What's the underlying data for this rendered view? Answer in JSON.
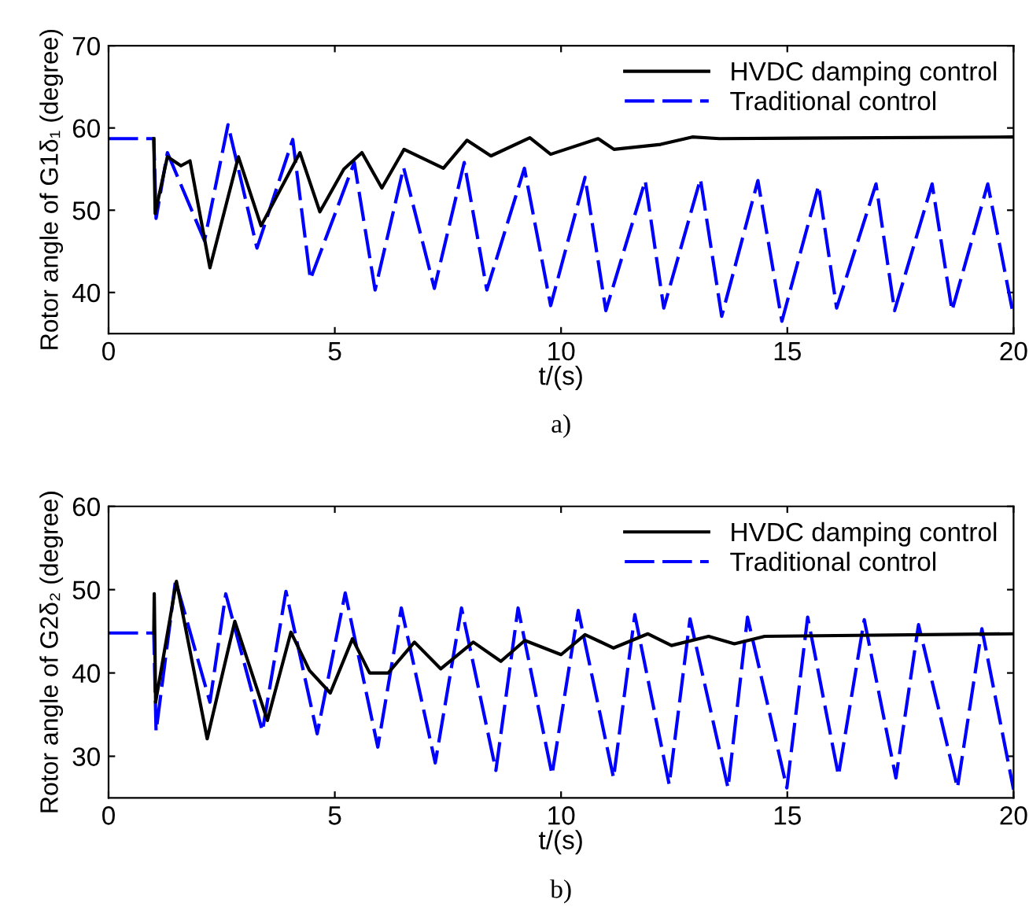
{
  "chart_data": [
    {
      "type": "line",
      "xlabel": "t/(s)",
      "ylabel": "Rotor angle of G1δ₁ (degree)",
      "annotations": [
        "a)"
      ],
      "xlim": [
        0,
        20
      ],
      "ylim": [
        35,
        70
      ],
      "xticks": [
        0,
        5,
        10,
        15,
        20
      ],
      "yticks": [
        40,
        50,
        60,
        70
      ],
      "grid": false,
      "legend": "top right",
      "series": [
        {
          "name": "HVDC damping control",
          "color": "#000000",
          "line_style": "solid",
          "x": [
            1,
            1.03,
            1.3,
            1.6,
            1.8,
            2.24,
            2.87,
            3.37,
            4.23,
            4.67,
            5.2,
            5.6,
            6.04,
            6.53,
            7.4,
            7.92,
            8.45,
            9.31,
            9.77,
            10.82,
            11.17,
            12.2,
            12.9,
            13.5,
            20
          ],
          "values": [
            58.7,
            49.6,
            56.5,
            55.4,
            56.0,
            43.0,
            56.5,
            48.1,
            57.0,
            49.8,
            55.0,
            57.0,
            52.7,
            57.4,
            55.1,
            58.5,
            56.6,
            58.8,
            56.8,
            58.7,
            57.4,
            58.0,
            58.9,
            58.7,
            58.9
          ]
        },
        {
          "name": "Traditional control",
          "color": "#0000ff",
          "line_style": "dashed",
          "x": [
            0,
            1,
            1.05,
            1.3,
            2.12,
            2.64,
            3.28,
            4.07,
            4.46,
            5.43,
            5.89,
            6.52,
            7.2,
            7.86,
            8.36,
            9.19,
            9.77,
            10.53,
            10.99,
            11.86,
            12.27,
            13.08,
            13.55,
            14.35,
            14.88,
            15.69,
            16.09,
            16.96,
            17.37,
            18.2,
            18.64,
            19.43,
            20
          ],
          "values": [
            58.7,
            58.7,
            49.0,
            57.0,
            46.3,
            60.4,
            45.4,
            58.6,
            41.6,
            55.8,
            40.3,
            55.2,
            40.5,
            55.8,
            40.3,
            55.1,
            38.4,
            54.0,
            37.8,
            53.6,
            38.1,
            53.8,
            37.1,
            53.6,
            36.5,
            53.0,
            38.1,
            53.2,
            37.8,
            53.2,
            37.8,
            53.2,
            37.1
          ]
        }
      ]
    },
    {
      "type": "line",
      "xlabel": "t/(s)",
      "ylabel": "Rotor angle of G2δ₂ (degree)",
      "annotations": [
        "b)"
      ],
      "xlim": [
        0,
        20
      ],
      "ylim": [
        25,
        60
      ],
      "xticks": [
        0,
        5,
        10,
        15,
        20
      ],
      "yticks": [
        30,
        40,
        50,
        60
      ],
      "grid": false,
      "legend": "top right",
      "series": [
        {
          "name": "HVDC damping control",
          "color": "#000000",
          "line_style": "solid",
          "x": [
            1,
            1.01,
            1.04,
            1.5,
            2.18,
            2.79,
            3.51,
            4.03,
            4.44,
            4.9,
            5.39,
            5.77,
            6.18,
            6.76,
            7.34,
            8.06,
            8.67,
            9.2,
            10.0,
            10.53,
            11.16,
            11.92,
            12.44,
            13.26,
            13.83,
            14.5,
            20
          ],
          "values": [
            44.8,
            49.5,
            36.5,
            51.0,
            32.1,
            46.2,
            34.3,
            44.9,
            40.3,
            37.6,
            44.1,
            40.0,
            40.0,
            43.7,
            40.5,
            43.7,
            41.4,
            43.9,
            42.2,
            44.6,
            43.0,
            44.7,
            43.3,
            44.4,
            43.5,
            44.4,
            44.7
          ]
        },
        {
          "name": "Traditional control",
          "color": "#0000ff",
          "line_style": "dashed",
          "x": [
            0,
            1,
            1.05,
            1.48,
            2.24,
            2.59,
            3.4,
            3.92,
            4.61,
            5.23,
            5.95,
            6.47,
            7.22,
            7.8,
            8.56,
            9.05,
            9.8,
            10.38,
            11.16,
            11.63,
            12.39,
            12.85,
            13.69,
            14.12,
            14.99,
            15.45,
            16.13,
            16.7,
            17.4,
            17.9,
            18.76,
            19.3,
            20
          ],
          "values": [
            44.8,
            44.8,
            33.0,
            51.1,
            36.5,
            49.5,
            33.0,
            49.8,
            32.7,
            49.6,
            31.1,
            47.8,
            29.2,
            47.8,
            28.3,
            47.8,
            27.8,
            47.5,
            27.4,
            47.0,
            26.6,
            46.5,
            26.2,
            46.7,
            26.2,
            46.7,
            27.7,
            46.4,
            27.4,
            45.8,
            26.2,
            45.3,
            26.0
          ]
        }
      ]
    }
  ]
}
